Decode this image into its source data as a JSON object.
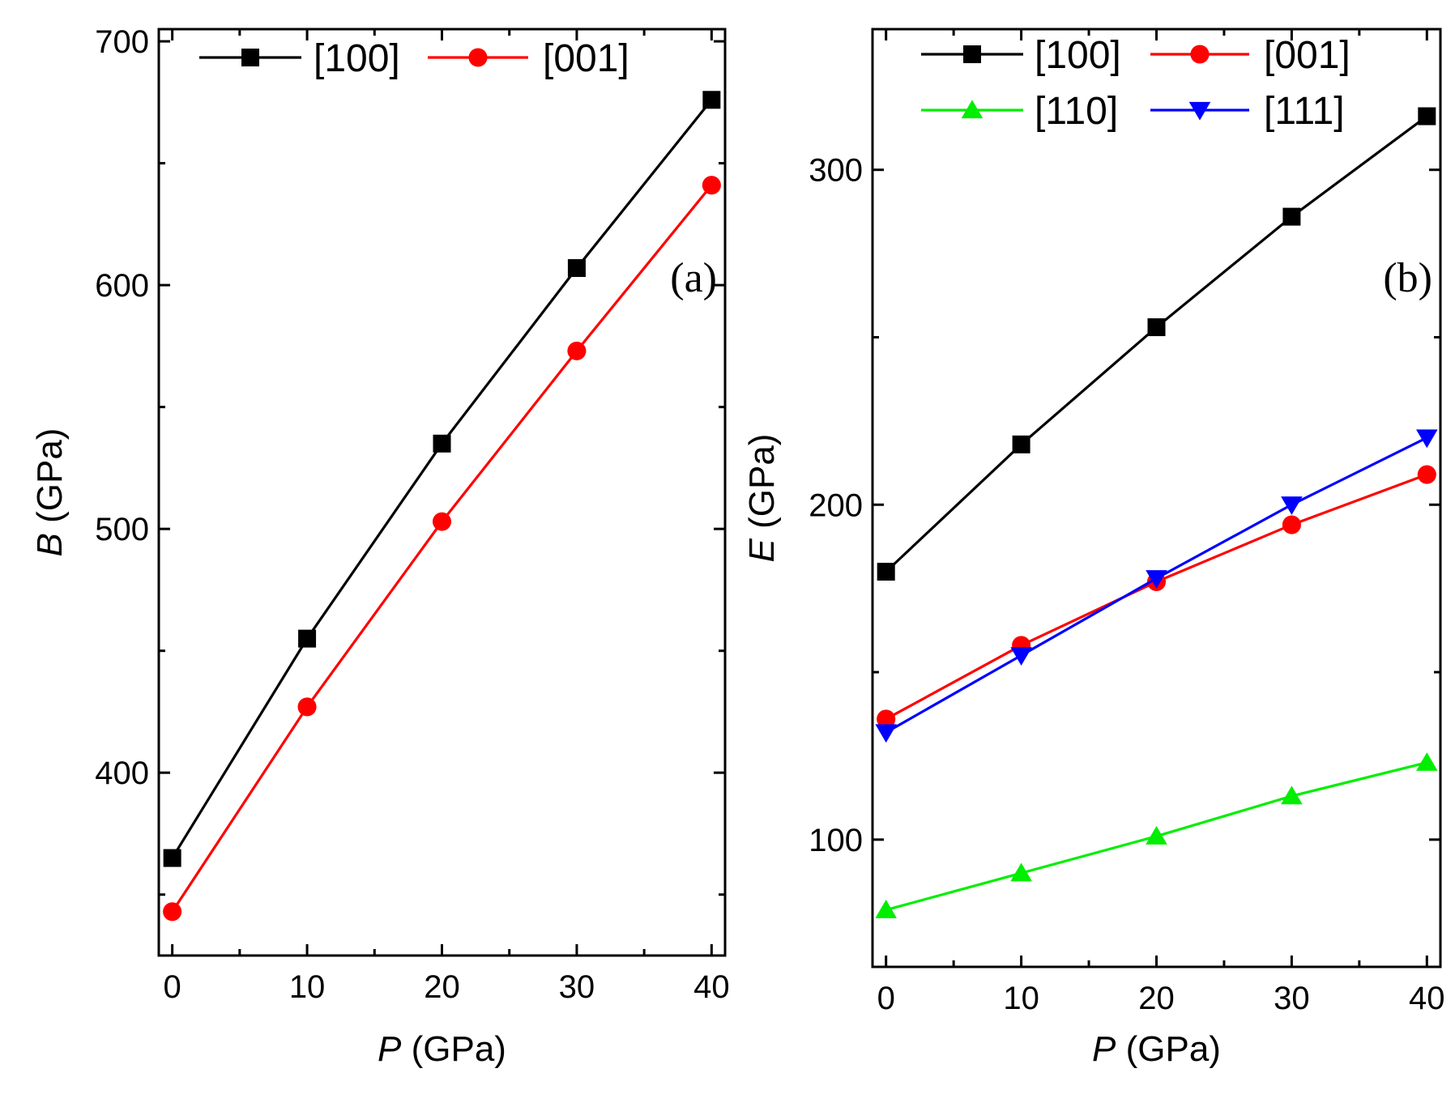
{
  "chart_data": [
    {
      "id": "a",
      "type": "line",
      "panel_label": "(a)",
      "title": "",
      "xlabel": {
        "symbol": "P",
        "unit": " (GPa)"
      },
      "ylabel": {
        "symbol": "B",
        "unit": " (GPa)"
      },
      "xlim": [
        -1,
        41
      ],
      "ylim": [
        325,
        705
      ],
      "xticks": [
        0,
        10,
        20,
        30,
        40
      ],
      "xtick_labels": [
        "0",
        "10",
        "20",
        "30",
        "40"
      ],
      "yticks": [
        400,
        500,
        600,
        700
      ],
      "ytick_labels": [
        "400",
        "500",
        "600",
        "700"
      ],
      "yminor": [
        350,
        450,
        550,
        650
      ],
      "grid": false,
      "legend_position": "top",
      "x": [
        0,
        10,
        20,
        30,
        40
      ],
      "series": [
        {
          "name": "[100]",
          "color": "#000000",
          "marker": "square",
          "values": [
            365,
            455,
            535,
            607,
            676
          ]
        },
        {
          "name": "[001]",
          "color": "#ff0000",
          "marker": "circle",
          "values": [
            343,
            427,
            503,
            573,
            641
          ]
        }
      ]
    },
    {
      "id": "b",
      "type": "line",
      "panel_label": "(b)",
      "title": "",
      "xlabel": {
        "symbol": "P",
        "unit": " (GPa)"
      },
      "ylabel": {
        "symbol": "E",
        "unit": " (GPa)"
      },
      "xlim": [
        -1,
        41
      ],
      "ylim": [
        62,
        342
      ],
      "xticks": [
        0,
        10,
        20,
        30,
        40
      ],
      "xtick_labels": [
        "0",
        "10",
        "20",
        "30",
        "40"
      ],
      "yticks": [
        100,
        200,
        300
      ],
      "ytick_labels": [
        "100",
        "200",
        "300"
      ],
      "yminor": [
        150,
        250
      ],
      "grid": false,
      "legend_position": "top",
      "x": [
        0,
        10,
        20,
        30,
        40
      ],
      "series": [
        {
          "name": "[100]",
          "color": "#000000",
          "marker": "square",
          "values": [
            180,
            218,
            253,
            286,
            316
          ]
        },
        {
          "name": "[001]",
          "color": "#ff0000",
          "marker": "circle",
          "values": [
            136,
            158,
            177,
            194,
            209
          ]
        },
        {
          "name": "[110]",
          "color": "#00ee00",
          "marker": "triangle-up",
          "values": [
            79,
            90,
            101,
            113,
            123
          ]
        },
        {
          "name": "[111]",
          "color": "#0000ff",
          "marker": "triangle-down",
          "values": [
            132,
            155,
            178,
            200,
            220
          ]
        }
      ]
    }
  ]
}
